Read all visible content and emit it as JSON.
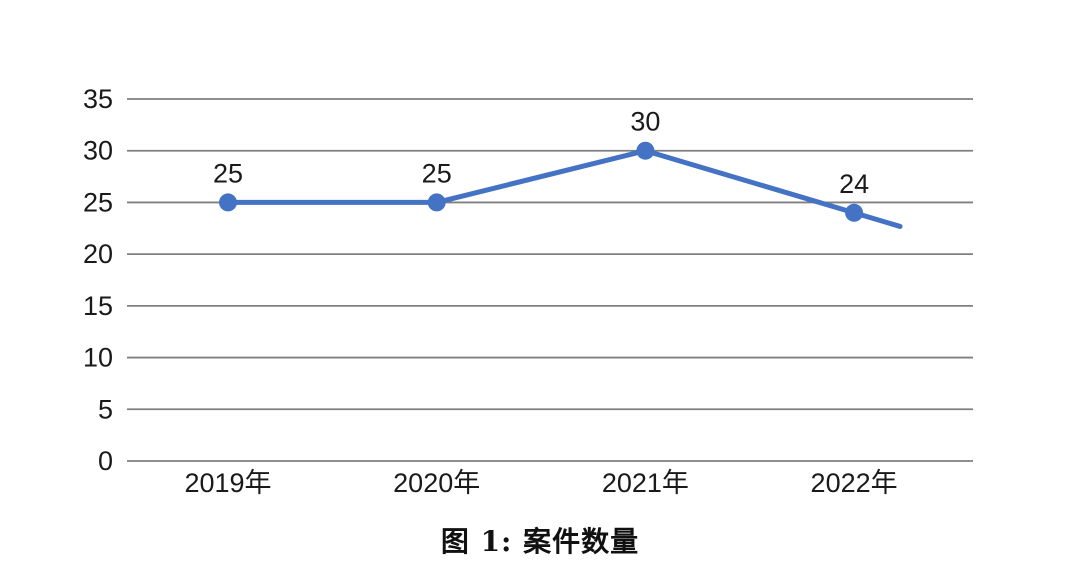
{
  "chart_data": {
    "type": "line",
    "title": "图 1: 案件数量",
    "categories": [
      "2019年",
      "2020年",
      "2021年",
      "2022年"
    ],
    "series": [
      {
        "name": "案件数量",
        "values": [
          25,
          25,
          30,
          24
        ],
        "data_labels": [
          "25",
          "25",
          "30",
          "24"
        ]
      }
    ],
    "y_ticks": [
      0,
      5,
      10,
      15,
      20,
      25,
      30,
      35
    ],
    "ylim": [
      0,
      35
    ],
    "xlabel": "",
    "ylabel": "",
    "grid": true,
    "legend_position": "none",
    "line_extends_past_last_point": true,
    "colors": {
      "line": "#4472c4",
      "marker": "#4472c4",
      "gridline": "#7f7f7f",
      "text": "#1a1a1a",
      "background": "#ffffff"
    }
  }
}
